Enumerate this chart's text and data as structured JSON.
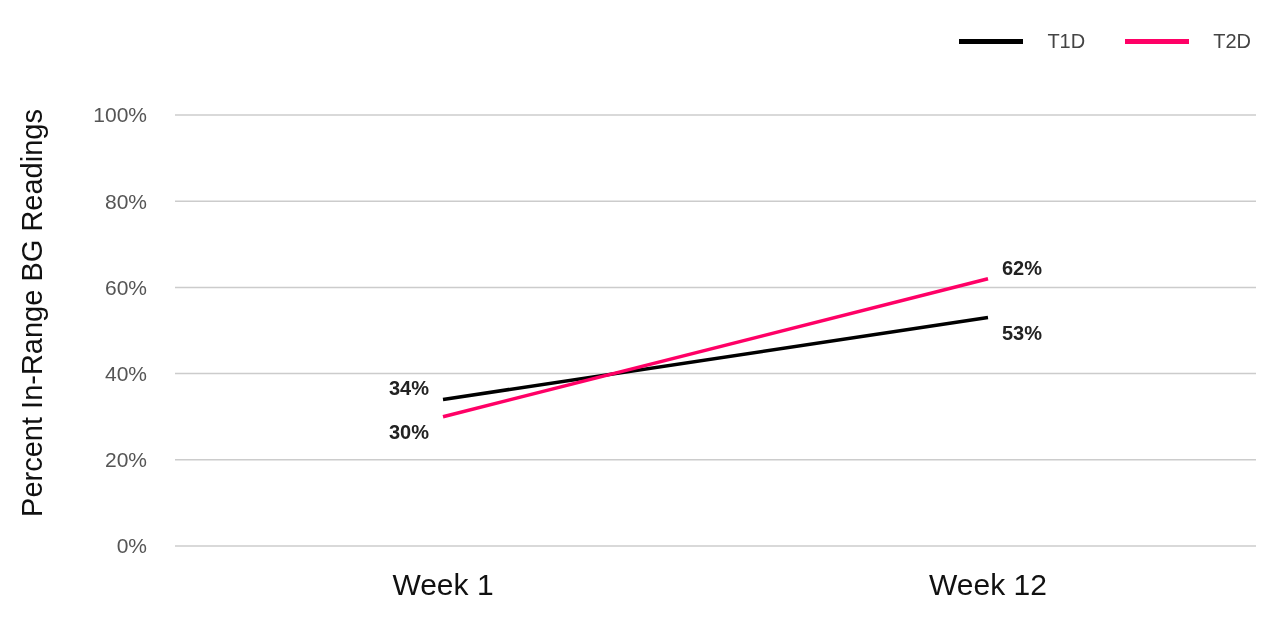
{
  "chart_data": {
    "type": "line",
    "ylabel": "Percent In-Range BG Readings",
    "categories": [
      "Week 1",
      "Week 12"
    ],
    "series": [
      {
        "name": "T1D",
        "color": "#000000",
        "values": [
          34,
          53
        ],
        "value_labels": [
          "34%",
          "53%"
        ]
      },
      {
        "name": "T2D",
        "color": "#ff0066",
        "values": [
          30,
          62
        ],
        "value_labels": [
          "30%",
          "62%"
        ]
      }
    ],
    "ylim": [
      0,
      100
    ],
    "yticks": [
      {
        "value": 0,
        "label": "0%"
      },
      {
        "value": 20,
        "label": "20%"
      },
      {
        "value": 40,
        "label": "40%"
      },
      {
        "value": 60,
        "label": "60%"
      },
      {
        "value": 80,
        "label": "80%"
      },
      {
        "value": 100,
        "label": "100%"
      }
    ],
    "grid": "y",
    "legend": "top right",
    "marker": "none",
    "line_style": "solid"
  }
}
